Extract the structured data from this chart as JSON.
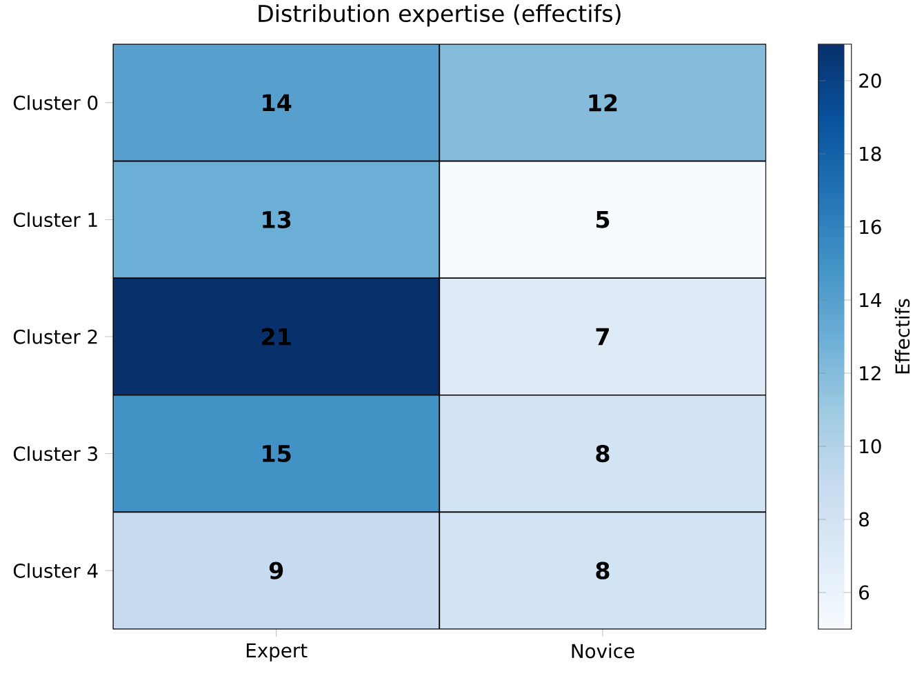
{
  "chart_data": {
    "type": "heatmap",
    "title": "Distribution expertise (effectifs)",
    "clabel": "Effectifs",
    "categories": [
      "Expert",
      "Novice"
    ],
    "y_categories": [
      "Cluster 0",
      "Cluster 1",
      "Cluster 2",
      "Cluster 3",
      "Cluster 4"
    ],
    "cells": [
      [
        14,
        12
      ],
      [
        13,
        5
      ],
      [
        21,
        7
      ],
      [
        15,
        8
      ],
      [
        9,
        8
      ]
    ],
    "clim": [
      5,
      21
    ],
    "cticks": [
      6,
      8,
      10,
      12,
      14,
      16,
      18,
      20
    ],
    "data_labels": true
  }
}
